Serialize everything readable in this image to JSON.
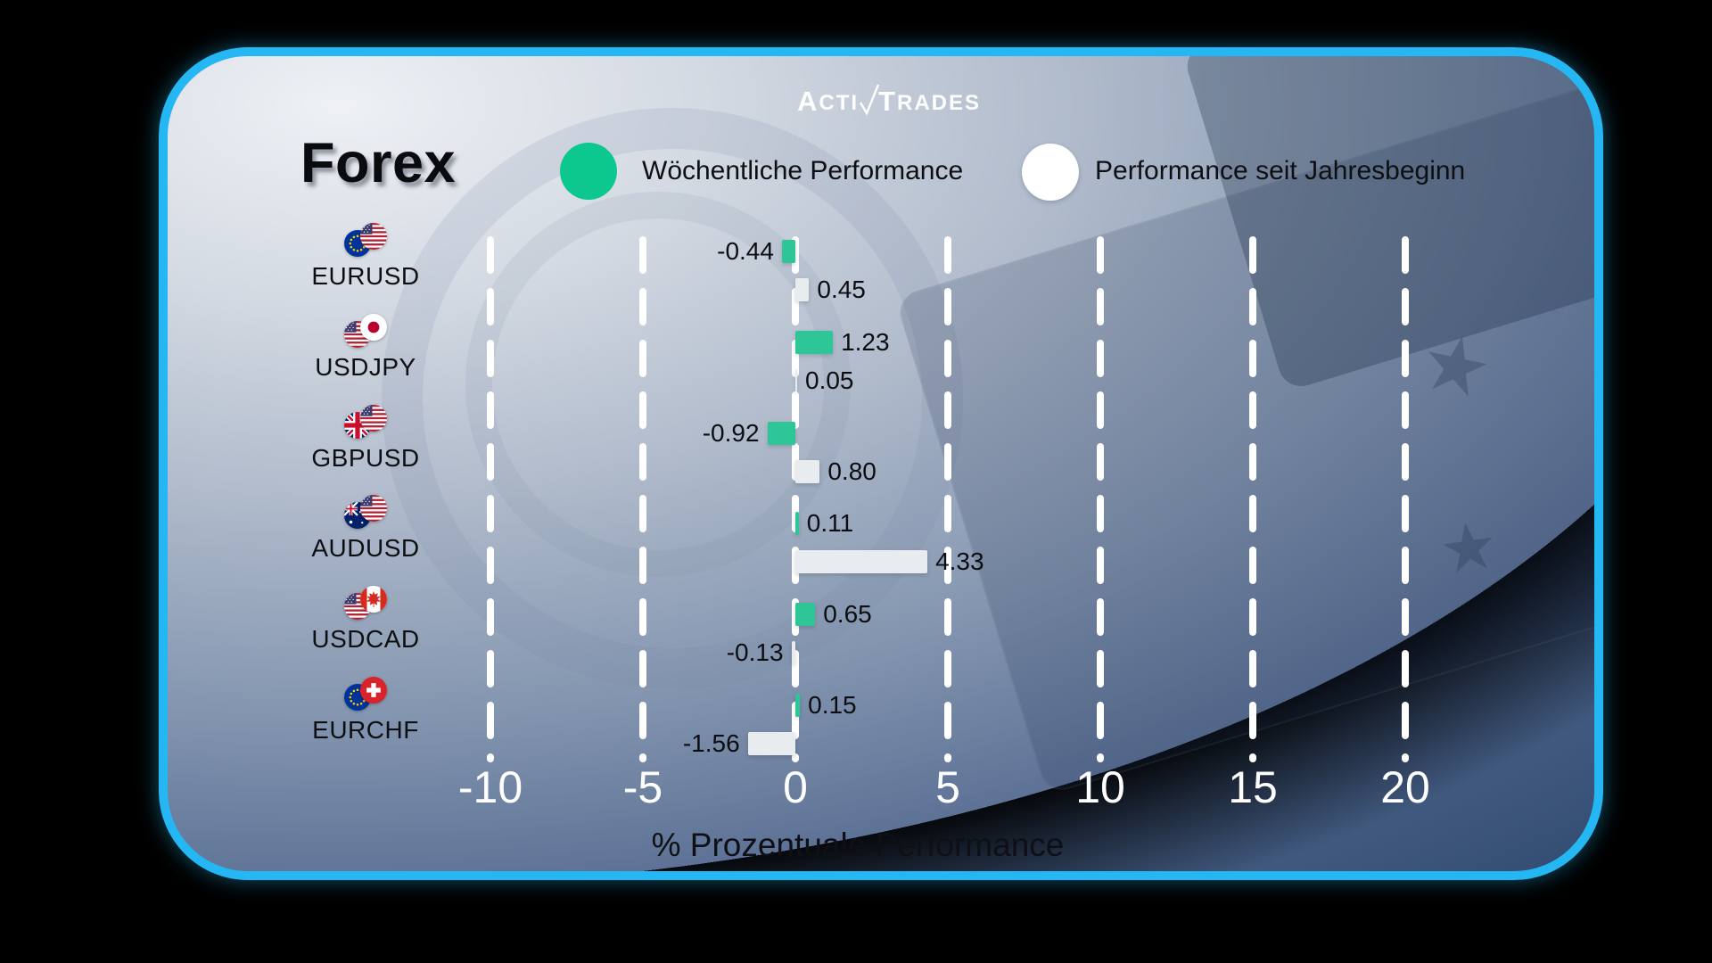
{
  "brand": {
    "part1": "A",
    "part2": "CTI",
    "part3": "T",
    "part4": "RADES"
  },
  "title": "Forex",
  "legend": [
    {
      "label": "Wöchentliche Performance",
      "color": "#0cc88e"
    },
    {
      "label": "Performance seit Jahresbeginn",
      "color": "#ffffff"
    }
  ],
  "colors": {
    "border_cyan": "#24b7f4",
    "bar_green": "#2fc697",
    "bar_light": "#e9ecef",
    "tick_text": "#ffffff",
    "label_text": "#0d0f13"
  },
  "chart_data": {
    "type": "bar",
    "orientation": "horizontal",
    "title": "Forex",
    "xlabel": "% Prozentuale Performance",
    "xlim": [
      -10,
      20
    ],
    "ticks": [
      -10,
      -5,
      0,
      5,
      10,
      15,
      20
    ],
    "grid": "dashed-vertical-white",
    "legend_position": "top",
    "categories": [
      "EURUSD",
      "USDJPY",
      "GBPUSD",
      "AUDUSD",
      "USDCAD",
      "EURCHF"
    ],
    "flag_pairs": [
      [
        "eu",
        "us"
      ],
      [
        "us",
        "jp"
      ],
      [
        "gb",
        "us"
      ],
      [
        "au",
        "us"
      ],
      [
        "us",
        "ca"
      ],
      [
        "eu",
        "ch"
      ]
    ],
    "series": [
      {
        "name": "Wöchentliche Performance",
        "color": "#2fc697",
        "values": [
          -0.44,
          1.23,
          -0.92,
          0.11,
          0.65,
          0.15
        ],
        "value_labels": [
          "-0.44",
          "1.23",
          "-0.92",
          "0.11",
          "0.65",
          "0.15"
        ]
      },
      {
        "name": "Performance seit Jahresbeginn",
        "color": "#e9ecef",
        "values": [
          0.45,
          0.05,
          0.8,
          4.33,
          -0.13,
          -1.56
        ],
        "value_labels": [
          "0.45",
          "0.05",
          "0.80",
          "4.33",
          "-0.13",
          "-1.56"
        ]
      }
    ]
  }
}
